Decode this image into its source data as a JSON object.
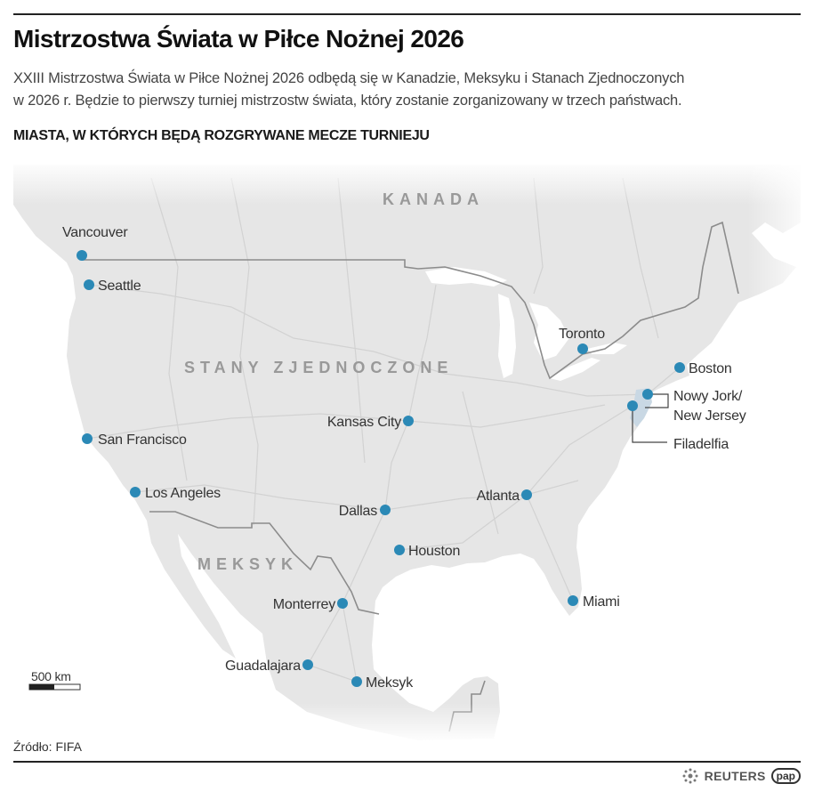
{
  "header": {
    "title": "Mistrzostwa Świata w Piłce Nożnej 2026",
    "subtitle_line1": "XXIII Mistrzostwa Świata w Piłce Nożnej 2026 odbędą się w Kanadzie, Meksyku i Stanach Zjednoczonych",
    "subtitle_line2": "w 2026 r. Będzie to pierwszy turniej mistrzostw świata, który zostanie zorganizowany w trzech państwach.",
    "section_title": "MIASTA, W KTÓRYCH BĘDĄ ROZGRYWANE MECZE TURNIEJU"
  },
  "map": {
    "countries": {
      "canada": "KANADA",
      "usa": "STANY ZJEDNOCZONE",
      "mexico": "MEKSYK"
    },
    "cities": {
      "vancouver": "Vancouver",
      "seattle": "Seattle",
      "san_francisco": "San Francisco",
      "los_angeles": "Los Angeles",
      "kansas_city": "Kansas City",
      "dallas": "Dallas",
      "houston": "Houston",
      "monterrey": "Monterrey",
      "guadalajara": "Guadalajara",
      "mexico_city": "Meksyk",
      "atlanta": "Atlanta",
      "miami": "Miami",
      "toronto": "Toronto",
      "boston": "Boston",
      "new_york_line1": "Nowy Jork/",
      "new_york_line2": "New Jersey",
      "philadelphia": "Filadelfia"
    },
    "scale_label": "500 km",
    "colors": {
      "land": "#e6e6e6",
      "water": "#ffffff",
      "city_dot": "#2b89b6",
      "border": "#8c8c8c",
      "roads": "#d2d2d2",
      "highlight": "#c9d8e4"
    }
  },
  "footer": {
    "source": "Źródło: FIFA",
    "logo_reuters": "REUTERS",
    "logo_pap": "pap"
  }
}
